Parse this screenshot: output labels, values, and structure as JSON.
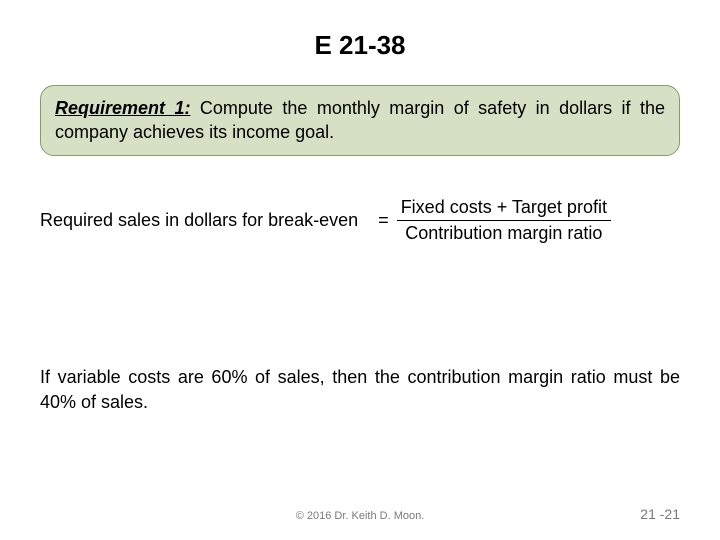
{
  "slide": {
    "title": "E 21-38",
    "requirement": {
      "label": "Requirement 1:",
      "text": " Compute the monthly margin of safety in dollars if the company achieves its income goal."
    },
    "formula": {
      "left": "Required sales in dollars for break-even",
      "equals": "=",
      "numerator": "Fixed costs + Target profit",
      "denominator": "Contribution margin ratio"
    },
    "body": "If variable costs are 60% of sales, then the contribution margin ratio must be 40% of sales.",
    "copyright": "© 2016 Dr. Keith D. Moon.",
    "page_number": "21 -21"
  },
  "styling": {
    "background_color": "#ffffff",
    "title_fontsize": 26,
    "body_fontsize": 18,
    "footer_fontsize": 11,
    "page_number_fontsize": 14,
    "box_bg": "#d5e0c4",
    "box_border": "#8a9a6b",
    "box_radius": 14,
    "text_color": "#000000",
    "footer_color": "#7a7a7a",
    "font_family": "Arial"
  }
}
